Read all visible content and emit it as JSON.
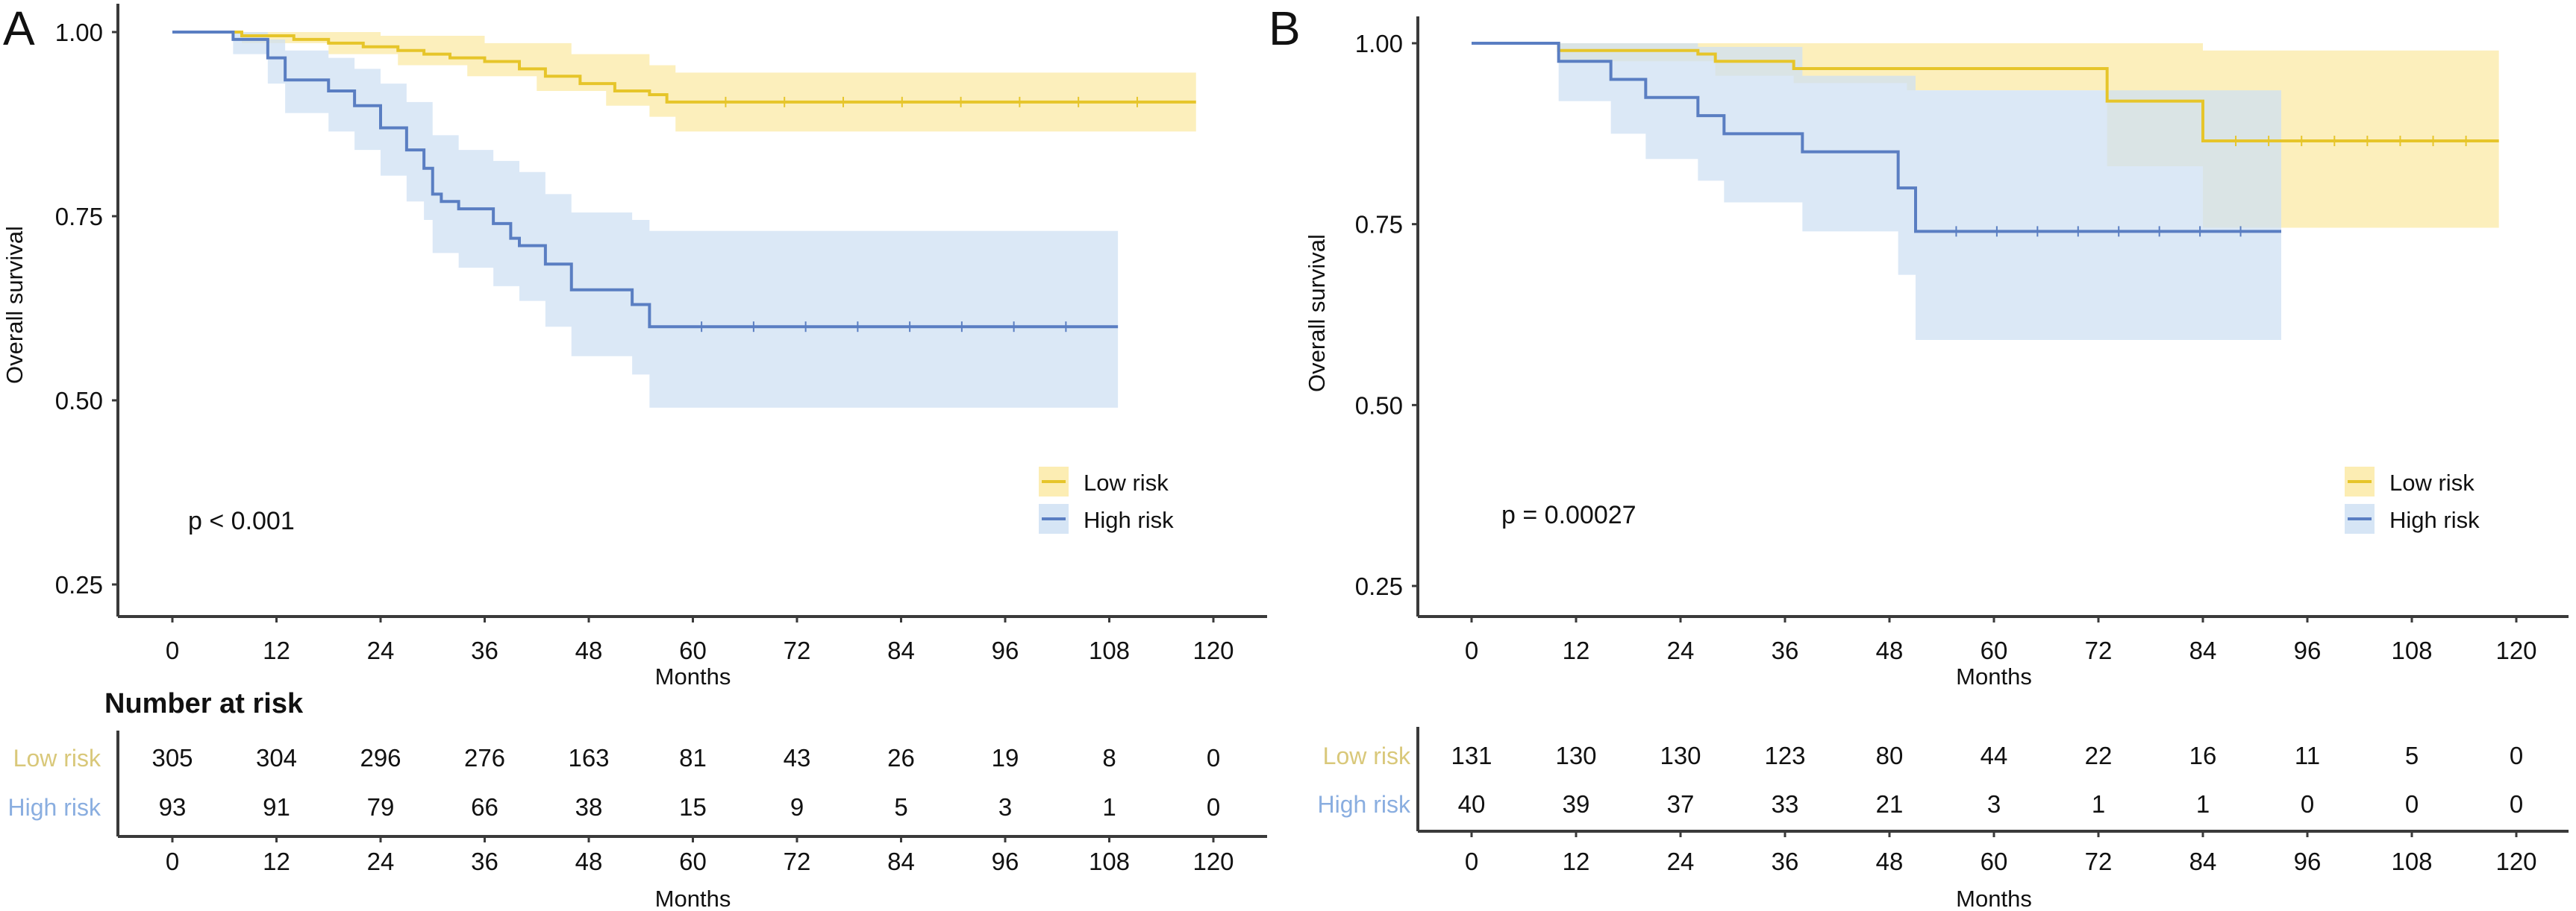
{
  "figure": {
    "panels": [
      "A",
      "B"
    ]
  },
  "colors": {
    "low_risk_line": "#E6C52A",
    "low_risk_ci": "#FBEAA6",
    "high_risk_line": "#5A7EC2",
    "high_risk_ci": "#CFE0F3",
    "low_risk_label": "#D9C87A",
    "high_risk_label": "#8AAEE0"
  },
  "chart_data": [
    {
      "type": "line",
      "subtype": "kaplan-meier",
      "panel_label": "A",
      "title": "",
      "xlabel": "Months",
      "ylabel": "Overall survival",
      "xlim": [
        0,
        120
      ],
      "ylim": [
        0.25,
        1.0
      ],
      "x_ticks": [
        0,
        12,
        24,
        36,
        48,
        60,
        72,
        84,
        96,
        108,
        120
      ],
      "y_ticks": [
        0.25,
        0.5,
        0.75,
        1.0
      ],
      "y_tick_labels": [
        "0.25",
        "0.50",
        "0.75",
        "1.00"
      ],
      "grid": false,
      "annotation": "p < 0.001",
      "legend": {
        "position": "bottom-right",
        "entries": [
          "Low risk",
          "High risk"
        ]
      },
      "series": [
        {
          "name": "Low risk",
          "steps": [
            [
              0,
              1.0
            ],
            [
              8,
              0.995
            ],
            [
              14,
              0.99
            ],
            [
              18,
              0.985
            ],
            [
              22,
              0.98
            ],
            [
              26,
              0.975
            ],
            [
              29,
              0.97
            ],
            [
              32,
              0.965
            ],
            [
              36,
              0.96
            ],
            [
              40,
              0.95
            ],
            [
              43,
              0.94
            ],
            [
              47,
              0.93
            ],
            [
              51,
              0.92
            ],
            [
              55,
              0.915
            ],
            [
              57,
              0.905
            ]
          ],
          "end": 118,
          "ci_upper": [
            [
              0,
              1.0
            ],
            [
              12,
              1.0
            ],
            [
              24,
              0.995
            ],
            [
              36,
              0.985
            ],
            [
              46,
              0.97
            ],
            [
              55,
              0.955
            ],
            [
              58,
              0.945
            ]
          ],
          "ci_lower": [
            [
              0,
              1.0
            ],
            [
              8,
              0.985
            ],
            [
              18,
              0.97
            ],
            [
              26,
              0.955
            ],
            [
              34,
              0.94
            ],
            [
              42,
              0.92
            ],
            [
              50,
              0.9
            ],
            [
              55,
              0.885
            ],
            [
              58,
              0.865
            ]
          ]
        },
        {
          "name": "High risk",
          "steps": [
            [
              0,
              1.0
            ],
            [
              7,
              0.99
            ],
            [
              11,
              0.965
            ],
            [
              13,
              0.935
            ],
            [
              18,
              0.92
            ],
            [
              21,
              0.9
            ],
            [
              24,
              0.87
            ],
            [
              27,
              0.84
            ],
            [
              29,
              0.815
            ],
            [
              30,
              0.78
            ],
            [
              31,
              0.77
            ],
            [
              33,
              0.76
            ],
            [
              37,
              0.74
            ],
            [
              39,
              0.72
            ],
            [
              40,
              0.71
            ],
            [
              43,
              0.685
            ],
            [
              46,
              0.65
            ],
            [
              53,
              0.63
            ],
            [
              55,
              0.6
            ]
          ],
          "end": 109,
          "ci_upper": [
            [
              0,
              1.0
            ],
            [
              7,
              1.0
            ],
            [
              11,
              0.99
            ],
            [
              13,
              0.975
            ],
            [
              18,
              0.965
            ],
            [
              21,
              0.95
            ],
            [
              24,
              0.93
            ],
            [
              27,
              0.905
            ],
            [
              30,
              0.86
            ],
            [
              33,
              0.84
            ],
            [
              37,
              0.825
            ],
            [
              40,
              0.81
            ],
            [
              43,
              0.78
            ],
            [
              46,
              0.755
            ],
            [
              53,
              0.745
            ],
            [
              55,
              0.73
            ]
          ],
          "ci_lower": [
            [
              0,
              1.0
            ],
            [
              7,
              0.97
            ],
            [
              11,
              0.93
            ],
            [
              13,
              0.89
            ],
            [
              18,
              0.865
            ],
            [
              21,
              0.84
            ],
            [
              24,
              0.805
            ],
            [
              27,
              0.77
            ],
            [
              29,
              0.745
            ],
            [
              30,
              0.7
            ],
            [
              33,
              0.68
            ],
            [
              37,
              0.655
            ],
            [
              40,
              0.635
            ],
            [
              43,
              0.6
            ],
            [
              46,
              0.56
            ],
            [
              53,
              0.535
            ],
            [
              55,
              0.49
            ]
          ]
        }
      ],
      "risk_table": {
        "title": "Number at risk",
        "times": [
          0,
          12,
          24,
          36,
          48,
          60,
          72,
          84,
          96,
          108,
          120
        ],
        "xlabel": "Months",
        "rows": [
          {
            "label": "Low risk",
            "values": [
              305,
              304,
              296,
              276,
              163,
              81,
              43,
              26,
              19,
              8,
              0
            ]
          },
          {
            "label": "High risk",
            "values": [
              93,
              91,
              79,
              66,
              38,
              15,
              9,
              5,
              3,
              1,
              0
            ]
          }
        ]
      }
    },
    {
      "type": "line",
      "subtype": "kaplan-meier",
      "panel_label": "B",
      "title": "",
      "xlabel": "Months",
      "ylabel": "Overall survival",
      "xlim": [
        0,
        120
      ],
      "ylim": [
        0.25,
        1.0
      ],
      "x_ticks": [
        0,
        12,
        24,
        36,
        48,
        60,
        72,
        84,
        96,
        108,
        120
      ],
      "y_ticks": [
        0.25,
        0.5,
        0.75,
        1.0
      ],
      "y_tick_labels": [
        "0.25",
        "0.50",
        "0.75",
        "1.00"
      ],
      "grid": false,
      "annotation": "p = 0.00027",
      "legend": {
        "position": "bottom-right",
        "entries": [
          "Low risk",
          "High risk"
        ]
      },
      "series": [
        {
          "name": "Low risk",
          "steps": [
            [
              0,
              1.0
            ],
            [
              10,
              0.99
            ],
            [
              26,
              0.985
            ],
            [
              28,
              0.975
            ],
            [
              37,
              0.965
            ],
            [
              73,
              0.92
            ],
            [
              84,
              0.865
            ]
          ],
          "end": 118,
          "ci_upper": [
            [
              0,
              1.0
            ],
            [
              84,
              0.99
            ]
          ],
          "ci_lower": [
            [
              0,
              1.0
            ],
            [
              10,
              0.975
            ],
            [
              28,
              0.955
            ],
            [
              37,
              0.945
            ],
            [
              50,
              0.935
            ],
            [
              73,
              0.83
            ],
            [
              84,
              0.745
            ]
          ]
        },
        {
          "name": "High risk",
          "steps": [
            [
              0,
              1.0
            ],
            [
              10,
              0.975
            ],
            [
              16,
              0.95
            ],
            [
              20,
              0.925
            ],
            [
              26,
              0.9
            ],
            [
              29,
              0.875
            ],
            [
              38,
              0.85
            ],
            [
              49,
              0.8
            ],
            [
              51,
              0.74
            ]
          ],
          "end": 93,
          "ci_upper": [
            [
              0,
              1.0
            ],
            [
              10,
              1.0
            ],
            [
              26,
              0.995
            ],
            [
              38,
              0.955
            ],
            [
              51,
              0.935
            ]
          ],
          "ci_lower": [
            [
              0,
              1.0
            ],
            [
              10,
              0.92
            ],
            [
              16,
              0.875
            ],
            [
              20,
              0.84
            ],
            [
              26,
              0.81
            ],
            [
              29,
              0.78
            ],
            [
              38,
              0.74
            ],
            [
              49,
              0.68
            ],
            [
              51,
              0.59
            ]
          ]
        }
      ],
      "risk_table": {
        "title": "",
        "times": [
          0,
          12,
          24,
          36,
          48,
          60,
          72,
          84,
          96,
          108,
          120
        ],
        "xlabel": "Months",
        "rows": [
          {
            "label": "Low risk",
            "values": [
              131,
              130,
              130,
              123,
              80,
              44,
              22,
              16,
              11,
              5,
              0
            ]
          },
          {
            "label": "High risk",
            "values": [
              40,
              39,
              37,
              33,
              21,
              3,
              1,
              1,
              0,
              0,
              0
            ]
          }
        ]
      }
    }
  ]
}
